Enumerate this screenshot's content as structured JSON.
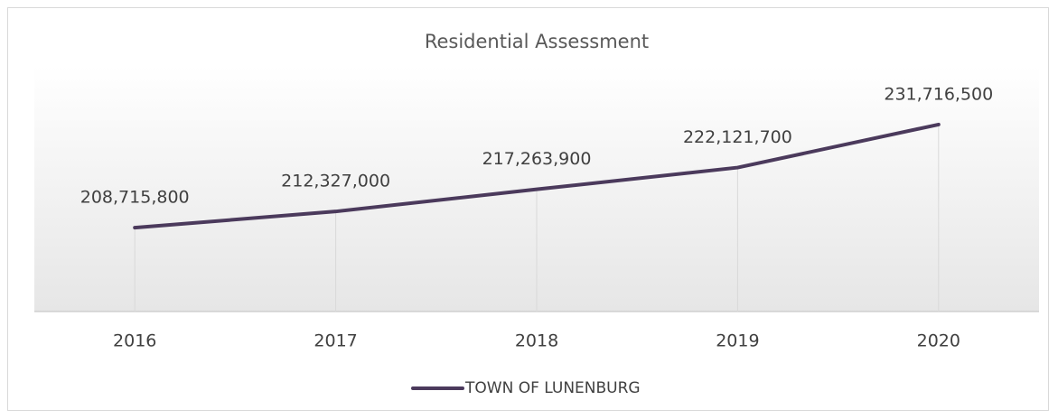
{
  "chart_data": {
    "type": "line",
    "title": "Residential Assessment",
    "categories": [
      "2016",
      "2017",
      "2018",
      "2019",
      "2020"
    ],
    "series": [
      {
        "name": "TOWN OF LUNENBURG",
        "color": "#4b3a5c",
        "values": [
          208715800,
          212327000,
          217263900,
          222121700,
          231716500
        ],
        "value_labels": [
          "208,715,800",
          "212,327,000",
          "217,263,900",
          "222,121,700",
          "231,716,500"
        ]
      }
    ],
    "ylim": [
      190000000,
      245000000
    ],
    "drop_lines": true,
    "legend": "bottom"
  }
}
